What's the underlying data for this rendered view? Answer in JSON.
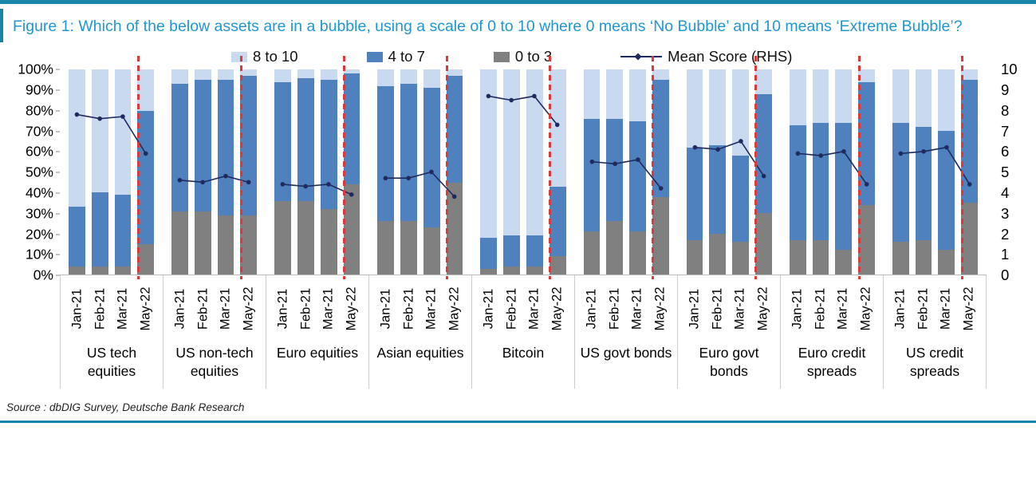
{
  "figure": {
    "title": "Figure 1: Which of the below assets are in a bubble, using a scale of 0 to 10 where 0 means ‘No Bubble’ and 10 means ‘Extreme Bubble’?",
    "source": "Source : dbDIG Survey, Deutsche Bank Research"
  },
  "colors": {
    "band_8_10": "#c9d9f0",
    "band_4_7": "#4e81bd",
    "band_0_3": "#808080",
    "mean_line": "#1f2a5e",
    "divider_red": "#d93b3b",
    "accent_teal": "#1786a8",
    "title_blue": "#2097d0"
  },
  "chart_data": {
    "type": "bar",
    "stacked": true,
    "unit": "% of respondents",
    "categories": [
      "Jan-21",
      "Feb-21",
      "Mar-21",
      "May-22"
    ],
    "legend": [
      {
        "label": "8 to 10",
        "kind": "swatch",
        "color": "#c9d9f0"
      },
      {
        "label": "4 to 7",
        "kind": "swatch",
        "color": "#4e81bd"
      },
      {
        "label": "0 to 3",
        "kind": "swatch",
        "color": "#808080"
      },
      {
        "label": "Mean Score (RHS)",
        "kind": "line",
        "color": "#1f2a5e"
      }
    ],
    "yaxis_left": {
      "range": [
        0,
        100
      ],
      "ticks": [
        "100%",
        "90%",
        "80%",
        "70%",
        "60%",
        "50%",
        "40%",
        "30%",
        "20%",
        "10%",
        "0%"
      ]
    },
    "yaxis_right": {
      "range": [
        0,
        10
      ],
      "ticks": [
        "10",
        "9",
        "8",
        "7",
        "6",
        "5",
        "4",
        "3",
        "2",
        "1",
        "0"
      ]
    },
    "series_note": "per group, per month: pct_0_3 + pct_4_7 + pct_8_10 = 100 (LHS %), mean on RHS 0-10",
    "groups": [
      {
        "name": "US tech equities",
        "bars": [
          {
            "month": "Jan-21",
            "pct_0_3": 4,
            "pct_4_7": 29,
            "pct_8_10": 67,
            "mean": 7.8
          },
          {
            "month": "Feb-21",
            "pct_0_3": 4,
            "pct_4_7": 36,
            "pct_8_10": 60,
            "mean": 7.6
          },
          {
            "month": "Mar-21",
            "pct_0_3": 4,
            "pct_4_7": 35,
            "pct_8_10": 61,
            "mean": 7.7
          },
          {
            "month": "May-22",
            "pct_0_3": 15,
            "pct_4_7": 65,
            "pct_8_10": 20,
            "mean": 5.9
          }
        ]
      },
      {
        "name": "US non-tech equities",
        "bars": [
          {
            "month": "Jan-21",
            "pct_0_3": 31,
            "pct_4_7": 62,
            "pct_8_10": 7,
            "mean": 4.6
          },
          {
            "month": "Feb-21",
            "pct_0_3": 31,
            "pct_4_7": 64,
            "pct_8_10": 5,
            "mean": 4.5
          },
          {
            "month": "Mar-21",
            "pct_0_3": 29,
            "pct_4_7": 66,
            "pct_8_10": 5,
            "mean": 4.8
          },
          {
            "month": "May-22",
            "pct_0_3": 29,
            "pct_4_7": 68,
            "pct_8_10": 3,
            "mean": 4.5
          }
        ]
      },
      {
        "name": "Euro equities",
        "bars": [
          {
            "month": "Jan-21",
            "pct_0_3": 36,
            "pct_4_7": 58,
            "pct_8_10": 6,
            "mean": 4.4
          },
          {
            "month": "Feb-21",
            "pct_0_3": 36,
            "pct_4_7": 60,
            "pct_8_10": 4,
            "mean": 4.3
          },
          {
            "month": "Mar-21",
            "pct_0_3": 32,
            "pct_4_7": 63,
            "pct_8_10": 5,
            "mean": 4.4
          },
          {
            "month": "May-22",
            "pct_0_3": 44,
            "pct_4_7": 54,
            "pct_8_10": 2,
            "mean": 3.9
          }
        ]
      },
      {
        "name": "Asian equities",
        "bars": [
          {
            "month": "Jan-21",
            "pct_0_3": 26,
            "pct_4_7": 66,
            "pct_8_10": 8,
            "mean": 4.7
          },
          {
            "month": "Feb-21",
            "pct_0_3": 26,
            "pct_4_7": 67,
            "pct_8_10": 7,
            "mean": 4.7
          },
          {
            "month": "Mar-21",
            "pct_0_3": 23,
            "pct_4_7": 68,
            "pct_8_10": 9,
            "mean": 5.0
          },
          {
            "month": "May-22",
            "pct_0_3": 45,
            "pct_4_7": 52,
            "pct_8_10": 3,
            "mean": 3.8
          }
        ]
      },
      {
        "name": "Bitcoin",
        "bars": [
          {
            "month": "Jan-21",
            "pct_0_3": 3,
            "pct_4_7": 15,
            "pct_8_10": 82,
            "mean": 8.7
          },
          {
            "month": "Feb-21",
            "pct_0_3": 4,
            "pct_4_7": 15,
            "pct_8_10": 81,
            "mean": 8.5
          },
          {
            "month": "Mar-21",
            "pct_0_3": 4,
            "pct_4_7": 15,
            "pct_8_10": 81,
            "mean": 8.7
          },
          {
            "month": "May-22",
            "pct_0_3": 9,
            "pct_4_7": 34,
            "pct_8_10": 57,
            "mean": 7.3
          }
        ]
      },
      {
        "name": "US govt bonds",
        "bars": [
          {
            "month": "Jan-21",
            "pct_0_3": 21,
            "pct_4_7": 55,
            "pct_8_10": 24,
            "mean": 5.5
          },
          {
            "month": "Feb-21",
            "pct_0_3": 26,
            "pct_4_7": 50,
            "pct_8_10": 24,
            "mean": 5.4
          },
          {
            "month": "Mar-21",
            "pct_0_3": 21,
            "pct_4_7": 54,
            "pct_8_10": 25,
            "mean": 5.6
          },
          {
            "month": "May-22",
            "pct_0_3": 38,
            "pct_4_7": 57,
            "pct_8_10": 5,
            "mean": 4.2
          }
        ]
      },
      {
        "name": "Euro govt bonds",
        "bars": [
          {
            "month": "Jan-21",
            "pct_0_3": 17,
            "pct_4_7": 45,
            "pct_8_10": 38,
            "mean": 6.2
          },
          {
            "month": "Feb-21",
            "pct_0_3": 20,
            "pct_4_7": 43,
            "pct_8_10": 37,
            "mean": 6.1
          },
          {
            "month": "Mar-21",
            "pct_0_3": 16,
            "pct_4_7": 42,
            "pct_8_10": 42,
            "mean": 6.5
          },
          {
            "month": "May-22",
            "pct_0_3": 30,
            "pct_4_7": 58,
            "pct_8_10": 12,
            "mean": 4.8
          }
        ]
      },
      {
        "name": "Euro credit spreads",
        "bars": [
          {
            "month": "Jan-21",
            "pct_0_3": 17,
            "pct_4_7": 56,
            "pct_8_10": 27,
            "mean": 5.9
          },
          {
            "month": "Feb-21",
            "pct_0_3": 17,
            "pct_4_7": 57,
            "pct_8_10": 26,
            "mean": 5.8
          },
          {
            "month": "Mar-21",
            "pct_0_3": 12,
            "pct_4_7": 62,
            "pct_8_10": 26,
            "mean": 6.0
          },
          {
            "month": "May-22",
            "pct_0_3": 34,
            "pct_4_7": 60,
            "pct_8_10": 6,
            "mean": 4.4
          }
        ]
      },
      {
        "name": "US credit spreads",
        "bars": [
          {
            "month": "Jan-21",
            "pct_0_3": 16,
            "pct_4_7": 58,
            "pct_8_10": 26,
            "mean": 5.9
          },
          {
            "month": "Feb-21",
            "pct_0_3": 17,
            "pct_4_7": 55,
            "pct_8_10": 28,
            "mean": 6.0
          },
          {
            "month": "Mar-21",
            "pct_0_3": 12,
            "pct_4_7": 58,
            "pct_8_10": 30,
            "mean": 6.2
          },
          {
            "month": "May-22",
            "pct_0_3": 35,
            "pct_4_7": 60,
            "pct_8_10": 5,
            "mean": 4.4
          }
        ]
      }
    ]
  }
}
